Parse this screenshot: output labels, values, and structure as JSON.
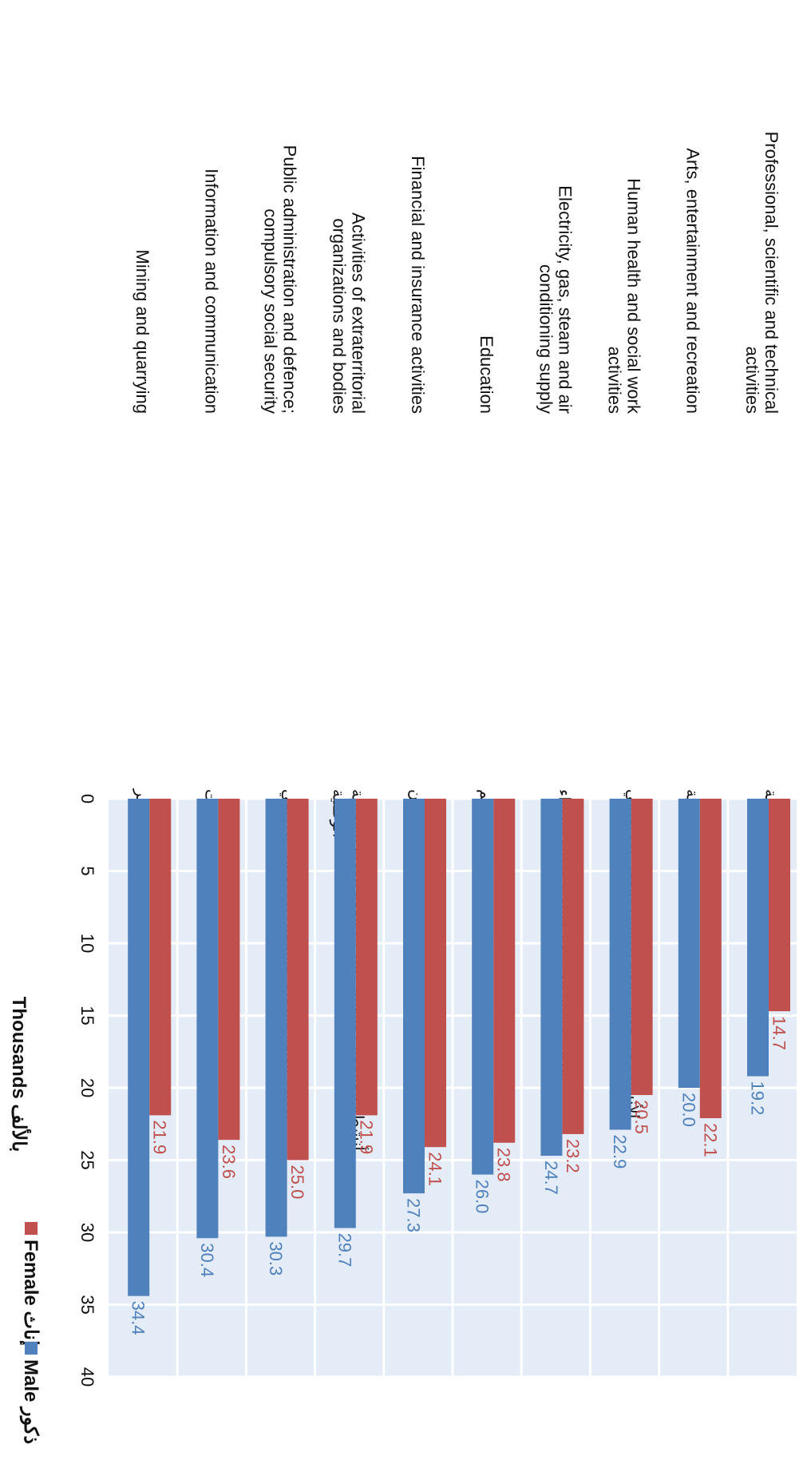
{
  "chart_data": {
    "type": "bar",
    "orientation": "horizontal",
    "categories": [
      {
        "en": "Professional, scientific and technical activities",
        "ar": "الأنشطة المهنية والعلمية والتقنية"
      },
      {
        "en": "Arts, entertainment and recreation",
        "ar": "الفنون والترفيه والتسلية"
      },
      {
        "en": "Human health and social work activities",
        "ar": "الأنشطة في مجال صحة الإنسان والعمل الاجتماعي"
      },
      {
        "en": "Electricity, gas, steam and air conditioning supply",
        "ar": "إمدادات الكهرباء والغاز والبخار وتكييف الهواء"
      },
      {
        "en": "Education",
        "ar": "التعليم"
      },
      {
        "en": "Financial and insurance activities",
        "ar": "الأنشطة المالية وأنشطة التأمين"
      },
      {
        "en": "Activities of extraterritorial organizations and bodies",
        "ar": "أنشطة المنظمات والهيئات غير الخاضعة للولاية القضائية الوطنية"
      },
      {
        "en": "Public administration and defence; compulsory social security",
        "ar": "الإدارة العامة والدفاع؛ والضمان الاجتماعي الإلزامي"
      },
      {
        "en": "Information and communication",
        "ar": "المعلومات والاتصالات"
      },
      {
        "en": "Mining and quarrying",
        "ar": "التعدين واستغلال المحاجر"
      }
    ],
    "series": [
      {
        "name": "Female",
        "name_ar": "إناث",
        "color": "#c0504d",
        "values": [
          14.7,
          22.1,
          20.5,
          23.2,
          23.8,
          24.1,
          21.9,
          25.0,
          23.6,
          21.9
        ],
        "labels": [
          "14.7",
          "22.1",
          "20.5",
          "23.2",
          "23.8",
          "24.1",
          "21.9",
          "25.0",
          "23.6",
          "21.9"
        ]
      },
      {
        "name": "Male",
        "name_ar": "ذكور",
        "color": "#4f81bd",
        "values": [
          19.2,
          20.0,
          22.9,
          24.7,
          26.0,
          27.3,
          29.7,
          30.3,
          30.4,
          34.4
        ],
        "labels": [
          "19.2",
          "20.0",
          "22.9",
          "24.7",
          "26.0",
          "27.3",
          "29.7",
          "30.3",
          "30.4",
          "34.4"
        ]
      }
    ],
    "xlim": [
      0,
      40
    ],
    "xticks": [
      "0",
      "5",
      "10",
      "15",
      "20",
      "25",
      "30",
      "35",
      "40"
    ],
    "xlabel_en": "Thousands",
    "xlabel_ar": "بالألف",
    "grid": true,
    "legend_position": "top-right",
    "plot_background": "#e4ecf7",
    "grid_color": "#ffffff"
  }
}
